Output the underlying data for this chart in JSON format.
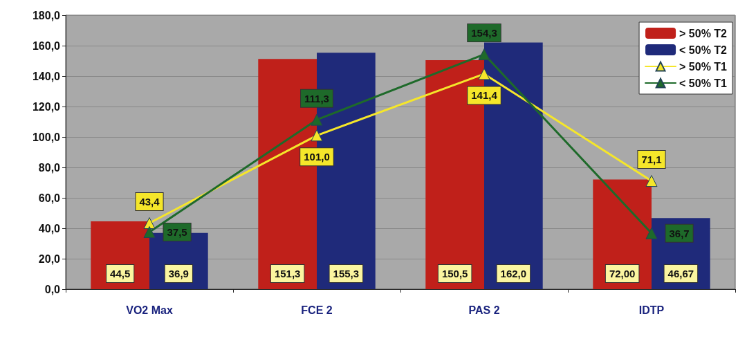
{
  "chart_data": {
    "type": "bar",
    "categories": [
      "VO2 Max",
      "FCE 2",
      "PAS 2",
      "IDTP"
    ],
    "series": [
      {
        "name": "> 50% T2",
        "color": "#c0201a",
        "values": [
          44.5,
          151.3,
          150.5,
          72.0
        ],
        "value_labels": [
          "44,5",
          "151,3",
          "150,5",
          "72,00"
        ]
      },
      {
        "name": "< 50% T2",
        "color": "#1f2a7a",
        "values": [
          36.9,
          155.3,
          162.0,
          46.67
        ],
        "value_labels": [
          "36,9",
          "155,3",
          "162,0",
          "46,67"
        ]
      },
      {
        "name": "> 50% T1",
        "type": "line",
        "color": "#f5e62a",
        "values": [
          43.4,
          101.0,
          141.4,
          71.1
        ],
        "value_labels": [
          "43,4",
          "101,0",
          "141,4",
          "71,1"
        ]
      },
      {
        "name": "< 50% T1",
        "type": "line",
        "color": "#1e6a2a",
        "values": [
          37.5,
          111.3,
          154.3,
          36.7
        ],
        "value_labels": [
          "37,5",
          "111,3",
          "154,3",
          "36,7"
        ]
      }
    ],
    "ylim": [
      0,
      180
    ],
    "yticks": [
      {
        "value": 0,
        "label": "0,0"
      },
      {
        "value": 20,
        "label": "20,0"
      },
      {
        "value": 40,
        "label": "40,0"
      },
      {
        "value": 60,
        "label": "60,0"
      },
      {
        "value": 80,
        "label": "80,0"
      },
      {
        "value": 100,
        "label": "100,0"
      },
      {
        "value": 120,
        "label": "120,0"
      },
      {
        "value": 140,
        "label": "140,0"
      },
      {
        "value": 160,
        "label": "160,0"
      },
      {
        "value": 180,
        "label": "180,0"
      }
    ],
    "grid": "y",
    "legend": "top right",
    "marker": "triangle",
    "line_style": "solid"
  }
}
